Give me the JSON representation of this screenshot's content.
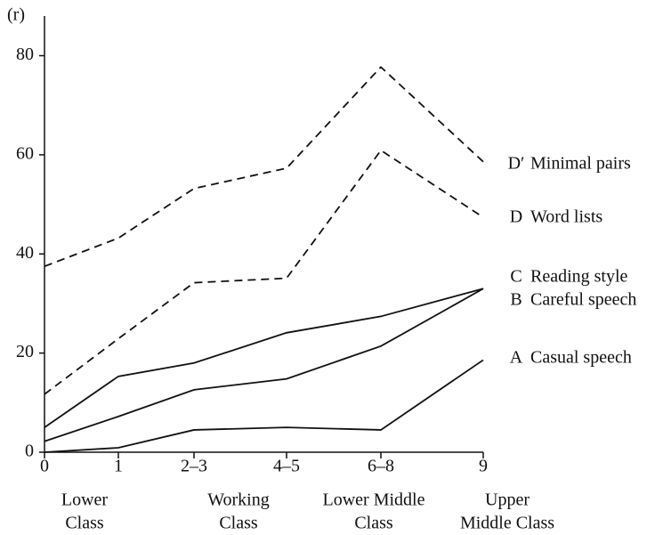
{
  "chart_data": {
    "type": "line",
    "y_label": "(r)",
    "categories": [
      "0",
      "1",
      "2–3",
      "4–5",
      "6–8",
      "9"
    ],
    "class_groups": [
      [
        "Lower",
        "Class"
      ],
      [
        "Working",
        "Class"
      ],
      [
        "Lower Middle",
        "Class"
      ],
      [
        "Upper",
        "Middle Class"
      ]
    ],
    "ylim": [
      0,
      88
    ],
    "yticks": [
      0,
      20,
      40,
      60,
      80
    ],
    "grid": false,
    "series": [
      {
        "letter": "D′",
        "name": "Minimal pairs",
        "color": "#111111",
        "dashed": true,
        "values": [
          37.5,
          43.2,
          53.2,
          57.3,
          77.7,
          58.6
        ]
      },
      {
        "letter": "D",
        "name": "Word lists",
        "color": "#111111",
        "dashed": true,
        "values": [
          11.7,
          22.9,
          34.2,
          35.1,
          60.9,
          47.4
        ]
      },
      {
        "letter": "C",
        "name": "Reading style",
        "color": "#111111",
        "dashed": false,
        "values": [
          5,
          15.3,
          18,
          24.1,
          27.4,
          33
        ]
      },
      {
        "letter": "B",
        "name": "Careful speech",
        "color": "#111111",
        "dashed": false,
        "values": [
          2.2,
          7.2,
          12.6,
          14.8,
          21.4,
          33
        ]
      },
      {
        "letter": "A",
        "name": "Casual speech",
        "color": "#111111",
        "dashed": false,
        "values": [
          0,
          0.9,
          4.5,
          5,
          4.5,
          18.6
        ]
      }
    ]
  }
}
